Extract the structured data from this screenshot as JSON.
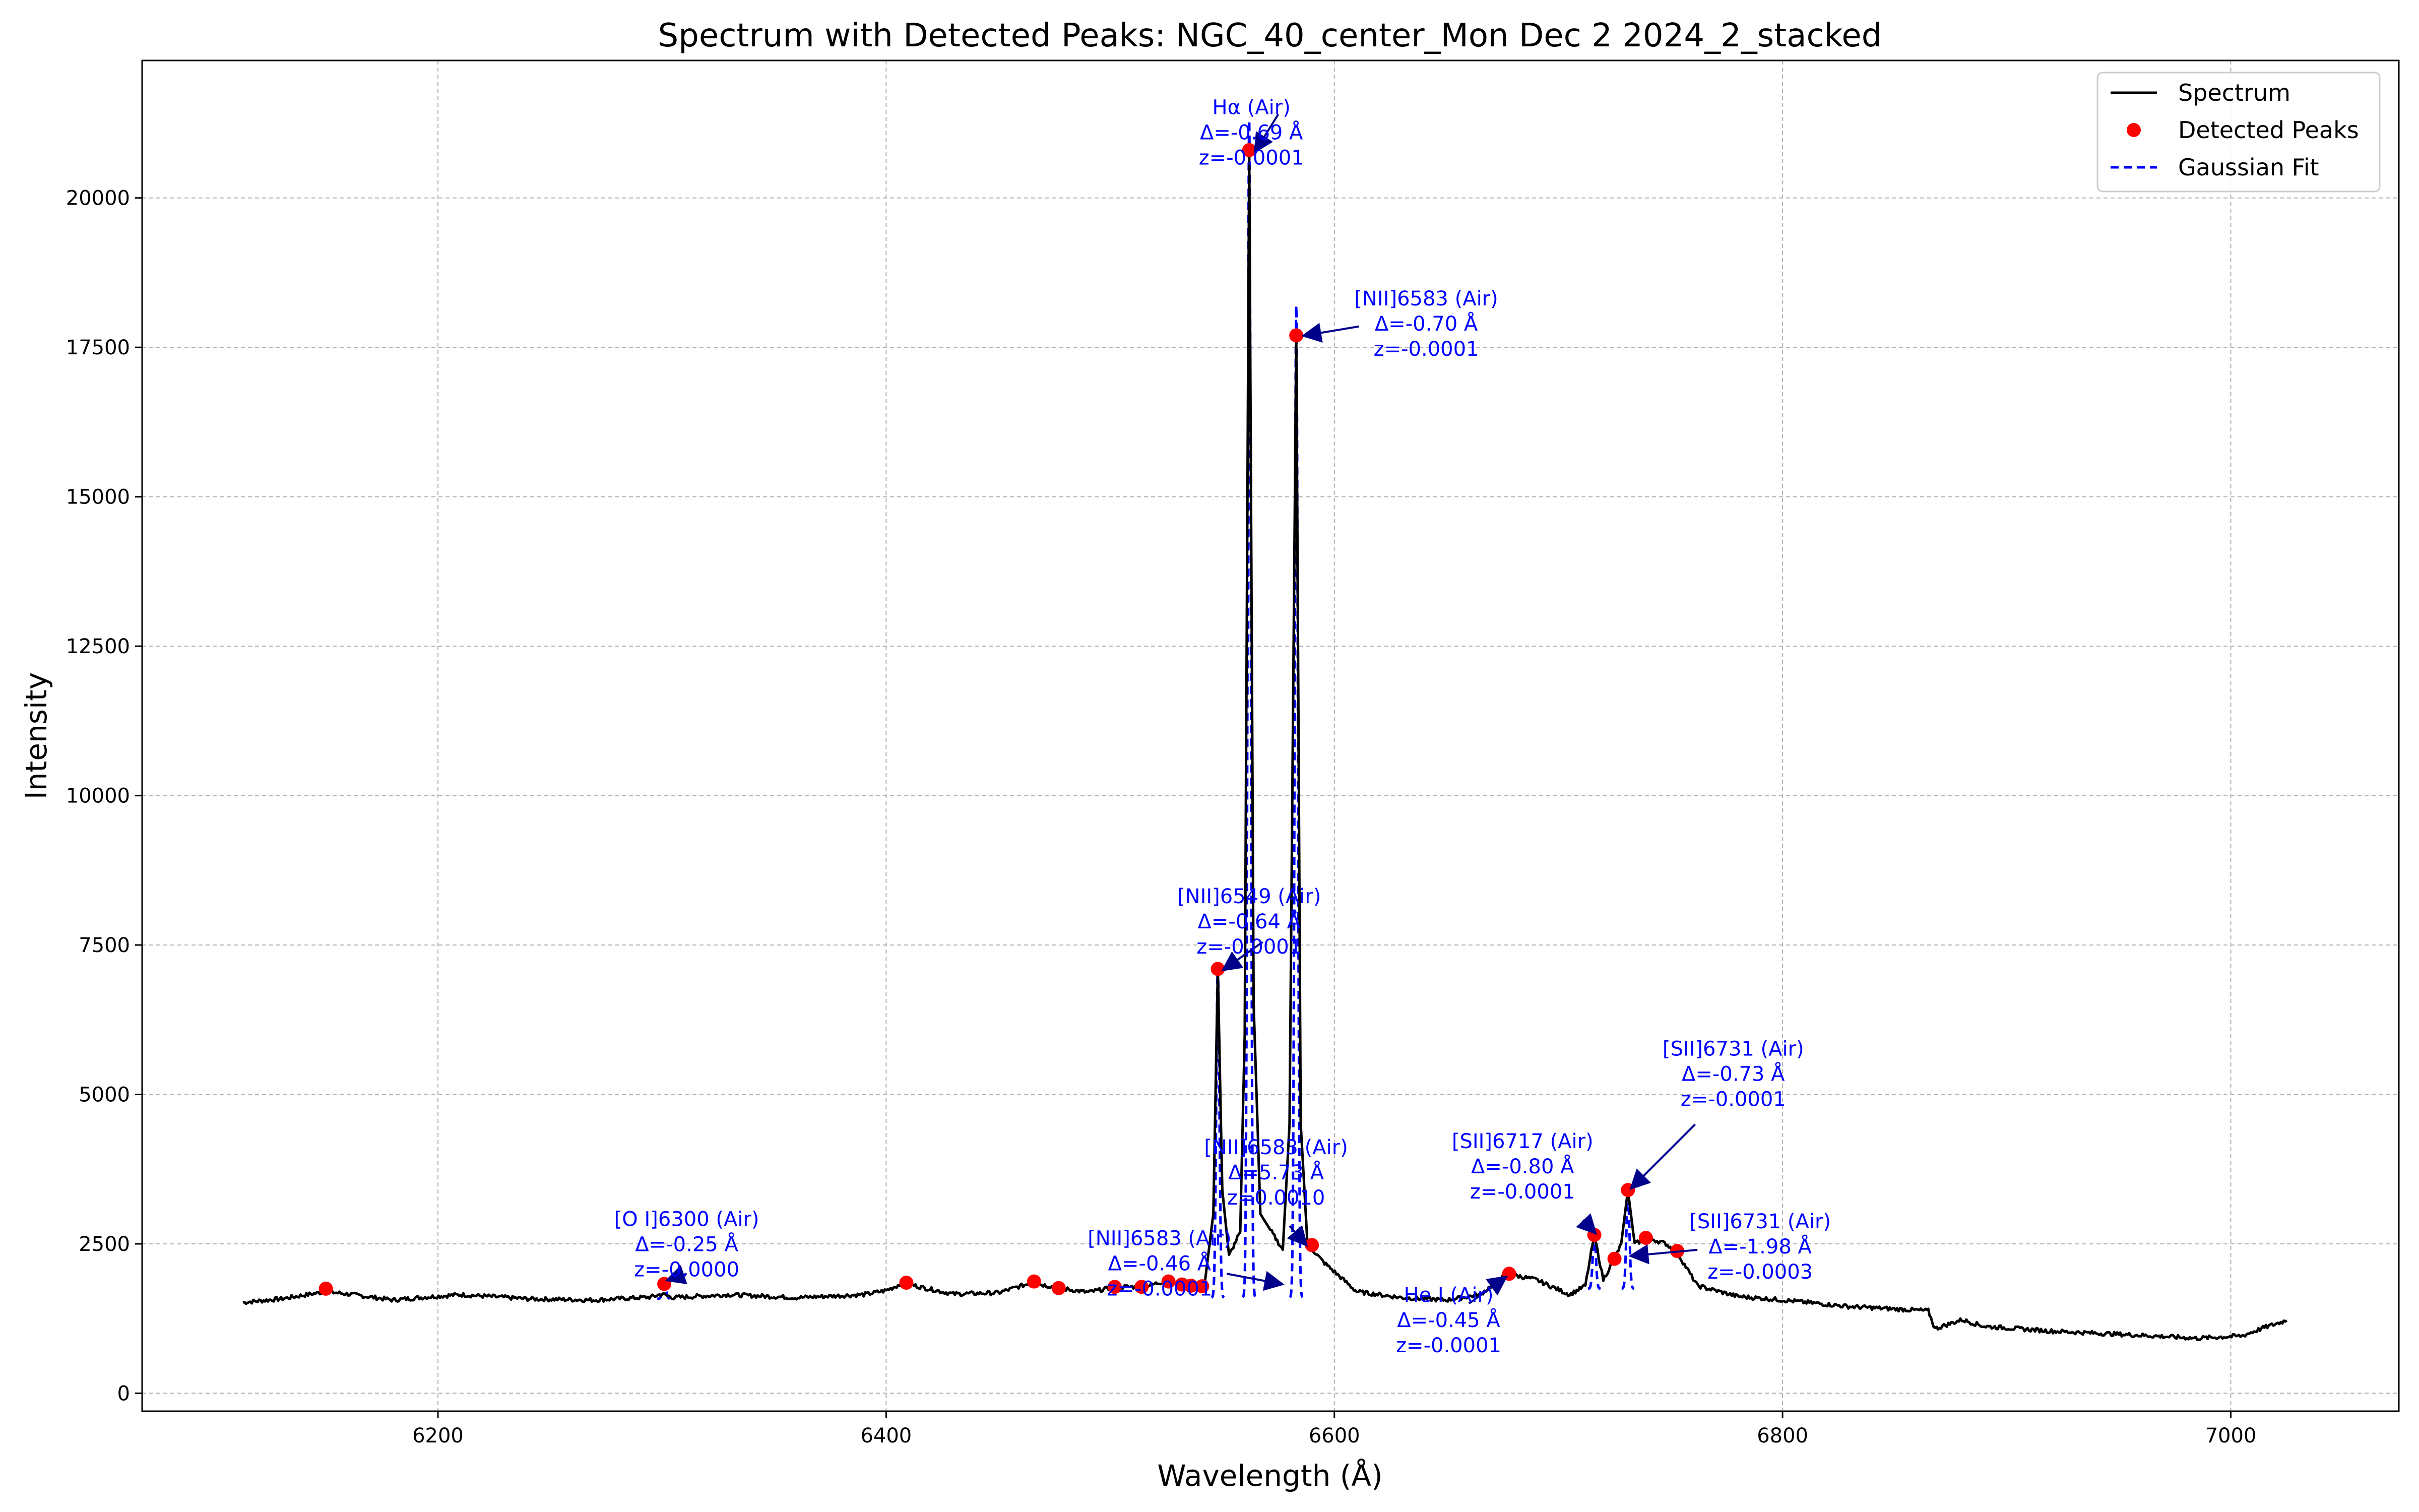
{
  "chart_data": {
    "type": "line",
    "title": "Spectrum with Detected Peaks: NGC_40_center_Mon Dec  2 2024_2_stacked",
    "xlabel": "Wavelength (Å)",
    "ylabel": "Intensity",
    "xlim": [
      6068,
      7075
    ],
    "ylim": [
      -300,
      22300
    ],
    "xticks": [
      6200,
      6400,
      6600,
      6800,
      7000
    ],
    "yticks": [
      0,
      2500,
      5000,
      7500,
      10000,
      12500,
      15000,
      17500,
      20000
    ],
    "xtick_labels": [
      "6200",
      "6400",
      "6600",
      "6800",
      "7000"
    ],
    "ytick_labels": [
      "0",
      "2500",
      "5000",
      "7500",
      "10000",
      "12500",
      "15000",
      "17500",
      "20000"
    ],
    "grid": true,
    "legend_position": "top-right",
    "legend": [
      "Spectrum",
      "Detected Peaks",
      "Gaussian Fit"
    ],
    "colors": {
      "spectrum": "#000000",
      "peaks": "#ff0000",
      "fit": "#0000ff",
      "annotation": "#0000ff",
      "arrow": "#00008b"
    },
    "spectrum": {
      "name": "Spectrum",
      "points": [
        [
          6113,
          1520
        ],
        [
          6130,
          1580
        ],
        [
          6150,
          1700
        ],
        [
          6160,
          1660
        ],
        [
          6180,
          1560
        ],
        [
          6195,
          1610
        ],
        [
          6210,
          1650
        ],
        [
          6240,
          1580
        ],
        [
          6270,
          1560
        ],
        [
          6295,
          1610
        ],
        [
          6300,
          1660
        ],
        [
          6305,
          1600
        ],
        [
          6330,
          1650
        ],
        [
          6360,
          1600
        ],
        [
          6390,
          1650
        ],
        [
          6400,
          1720
        ],
        [
          6408,
          1850
        ],
        [
          6415,
          1780
        ],
        [
          6430,
          1660
        ],
        [
          6450,
          1680
        ],
        [
          6465,
          1850
        ],
        [
          6472,
          1800
        ],
        [
          6477,
          1760
        ],
        [
          6490,
          1690
        ],
        [
          6503,
          1780
        ],
        [
          6515,
          1780
        ],
        [
          6525,
          1880
        ],
        [
          6535,
          1800
        ],
        [
          6542,
          1790
        ],
        [
          6546,
          3000
        ],
        [
          6548,
          7100
        ],
        [
          6550,
          3400
        ],
        [
          6553,
          2300
        ],
        [
          6558,
          2700
        ],
        [
          6560,
          6000
        ],
        [
          6562,
          20800
        ],
        [
          6564,
          6500
        ],
        [
          6567,
          3000
        ],
        [
          6572,
          2700
        ],
        [
          6577,
          2400
        ],
        [
          6580,
          4500
        ],
        [
          6583,
          17700
        ],
        [
          6585,
          4500
        ],
        [
          6588,
          2500
        ],
        [
          6595,
          2200
        ],
        [
          6610,
          1700
        ],
        [
          6630,
          1600
        ],
        [
          6650,
          1560
        ],
        [
          6665,
          1650
        ],
        [
          6677,
          2000
        ],
        [
          6690,
          1900
        ],
        [
          6705,
          1650
        ],
        [
          6712,
          1800
        ],
        [
          6716,
          2650
        ],
        [
          6720,
          1900
        ],
        [
          6725,
          2250
        ],
        [
          6728,
          2500
        ],
        [
          6731,
          3400
        ],
        [
          6734,
          2500
        ],
        [
          6740,
          2600
        ],
        [
          6748,
          2500
        ],
        [
          6753,
          2350
        ],
        [
          6762,
          1800
        ],
        [
          6780,
          1620
        ],
        [
          6800,
          1560
        ],
        [
          6830,
          1450
        ],
        [
          6865,
          1380
        ],
        [
          6868,
          1080
        ],
        [
          6880,
          1230
        ],
        [
          6890,
          1120
        ],
        [
          6920,
          1040
        ],
        [
          6960,
          970
        ],
        [
          6985,
          920
        ],
        [
          7005,
          960
        ],
        [
          7015,
          1100
        ],
        [
          7025,
          1220
        ]
      ]
    },
    "detected_peaks": {
      "name": "Detected Peaks",
      "x": [
        6150,
        6301,
        6409,
        6466,
        6477,
        6502,
        6514,
        6526,
        6532,
        6536,
        6541,
        6548,
        6562,
        6583,
        6590,
        6678,
        6716,
        6725,
        6731,
        6739,
        6753
      ],
      "y": [
        1750,
        1830,
        1850,
        1870,
        1760,
        1780,
        1780,
        1870,
        1820,
        1800,
        1790,
        7100,
        20800,
        17700,
        2480,
        2000,
        2650,
        2250,
        3400,
        2600,
        2380
      ]
    },
    "gaussian_fits": {
      "name": "Gaussian Fit",
      "fits": [
        {
          "center": 6301,
          "amplitude": 250,
          "sigma": 0.8,
          "baseline": 1580
        },
        {
          "center": 6548,
          "amplitude": 5500,
          "sigma": 0.7,
          "baseline": 1600
        },
        {
          "center": 6562,
          "amplitude": 19700,
          "sigma": 0.7,
          "baseline": 1600
        },
        {
          "center": 6583,
          "amplitude": 16600,
          "sigma": 0.7,
          "baseline": 1600
        },
        {
          "center": 6716,
          "amplitude": 900,
          "sigma": 0.7,
          "baseline": 1750
        },
        {
          "center": 6731,
          "amplitude": 1550,
          "sigma": 0.7,
          "baseline": 1750
        }
      ]
    },
    "annotations": [
      {
        "lines": [
          "Hα (Air)",
          "Δ=-0.69 Å",
          "z=-0.0001"
        ],
        "text_at": [
          6563,
          21400
        ],
        "arrow_from": [
          6575,
          21400
        ],
        "arrow_to": [
          6565,
          20800
        ]
      },
      {
        "lines": [
          "[NII]6583 (Air)",
          "Δ=-0.70 Å",
          "z=-0.0001"
        ],
        "text_at": [
          6641,
          18200
        ],
        "arrow_from": [
          6611,
          17850
        ],
        "arrow_to": [
          6587,
          17700
        ]
      },
      {
        "lines": [
          "[NII]6549 (Air)",
          "Δ=-0.64 Å",
          "z=-0.0001"
        ],
        "text_at": [
          6562,
          8200
        ],
        "arrow_from": [
          6568,
          7550
        ],
        "arrow_to": [
          6551,
          7100
        ]
      },
      {
        "lines": [
          "[NII]6583 (Air)",
          "Δ=5.73 Å",
          "z=0.0010"
        ],
        "text_at": [
          6574,
          4000
        ],
        "arrow_from": [
          6580,
          2800
        ],
        "arrow_to": [
          6587,
          2500
        ]
      },
      {
        "lines": [
          "[NII]6583 (Air)",
          "Δ=-0.46 Å",
          "z=-0.0001"
        ],
        "text_at": [
          6522,
          2480
        ],
        "arrow_from": [
          6552,
          2000
        ],
        "arrow_to": [
          6576,
          1830
        ]
      },
      {
        "lines": [
          "[O I]6300 (Air)",
          "Δ=-0.25 Å",
          "z=-0.0000"
        ],
        "text_at": [
          6311,
          2800
        ],
        "arrow_from": [
          6311,
          2000
        ],
        "arrow_to": [
          6303,
          1900
        ]
      },
      {
        "lines": [
          "He I (Air)",
          "Δ=-0.45 Å",
          "z=-0.0001"
        ],
        "text_at": [
          6651,
          1530
        ],
        "arrow_from": [
          6660,
          1500
        ],
        "arrow_to": [
          6676,
          1930
        ]
      },
      {
        "lines": [
          "[SII]6717 (Air)",
          "Δ=-0.80 Å",
          "z=-0.0001"
        ],
        "text_at": [
          6684,
          4100
        ],
        "arrow_from": [
          6711,
          2900
        ],
        "arrow_to": [
          6716,
          2700
        ]
      },
      {
        "lines": [
          "[SII]6731 (Air)",
          "Δ=-0.73 Å",
          "z=-0.0001"
        ],
        "text_at": [
          6778,
          5650
        ],
        "arrow_from": [
          6761,
          4500
        ],
        "arrow_to": [
          6733,
          3450
        ]
      },
      {
        "lines": [
          "[SII]6731 (Air)",
          "Δ=-1.98 Å",
          "z=-0.0003"
        ],
        "text_at": [
          6790,
          2760
        ],
        "arrow_from": [
          6762,
          2400
        ],
        "arrow_to": [
          6733,
          2300
        ]
      }
    ]
  }
}
